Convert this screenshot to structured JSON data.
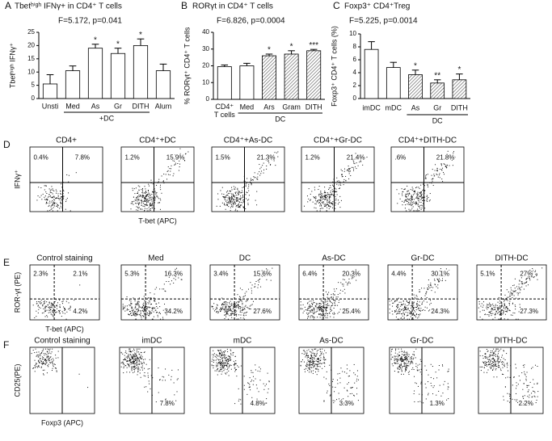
{
  "chart_data": [
    {
      "type": "bar",
      "panel": "A",
      "title": "Tbetʰⁱᵍʰ IFNγ+ in CD4⁺ T cells",
      "subtitle": "F=5.172, p=0.041",
      "ylabel": "Tbetʰⁱᵍʰ IFNγ⁺",
      "categories": [
        "Unsti",
        "Med",
        "As",
        "Gr",
        "DITH",
        "Alum"
      ],
      "values": [
        5.5,
        10.5,
        19,
        17,
        20,
        10.5
      ],
      "errors": [
        3.5,
        1.8,
        1.5,
        2,
        2.5,
        2.5
      ],
      "significance": [
        null,
        null,
        "*",
        "*",
        "*",
        null
      ],
      "hatched": [
        false,
        false,
        false,
        false,
        false,
        false
      ],
      "groups": [
        {
          "label": "+DC",
          "categories": [
            "Med",
            "As",
            "Gr",
            "DITH"
          ]
        }
      ],
      "ylim": [
        0,
        25
      ],
      "yticks": [
        0,
        5,
        10,
        15,
        20,
        25
      ],
      "color": "#ffffff"
    },
    {
      "type": "bar",
      "panel": "B",
      "title": "RORγt in CD4⁺ T cells",
      "subtitle": "F=6.826, p=0.0004",
      "ylabel": "% RORγt⁺ CD4⁺ T cells",
      "categories": [
        "CD4⁺ T cells",
        "Med",
        "Ars",
        "Gram",
        "DITH"
      ],
      "values": [
        19.5,
        20,
        26,
        27,
        29
      ],
      "errors": [
        1,
        1.5,
        1,
        2,
        0.8
      ],
      "significance": [
        null,
        null,
        "*",
        "*",
        "***"
      ],
      "hatched": [
        false,
        false,
        true,
        true,
        true
      ],
      "groups": [
        {
          "label": "DC",
          "categories": [
            "Med",
            "Ars",
            "Gram",
            "DITH"
          ]
        }
      ],
      "ylim": [
        0,
        40
      ],
      "yticks": [
        0,
        10,
        20,
        30,
        40
      ],
      "color": "#ffffff"
    },
    {
      "type": "bar",
      "panel": "C",
      "title": "Foxp3⁺ CD4⁺Treg",
      "subtitle": "F=5.225, p=0.0014",
      "ylabel": "Foxp3⁺ CD4⁺ T cells (%)",
      "categories": [
        "imDC",
        "mDC",
        "As",
        "Gr",
        "DITH"
      ],
      "values": [
        7.6,
        4.8,
        3.7,
        2.4,
        2.9
      ],
      "errors": [
        1.2,
        0.8,
        0.7,
        0.5,
        0.9
      ],
      "significance": [
        null,
        null,
        "*",
        "**",
        "*"
      ],
      "hatched": [
        false,
        false,
        true,
        true,
        true
      ],
      "groups": [
        {
          "label": "DC",
          "categories": [
            "As",
            "Gr",
            "DITH"
          ]
        }
      ],
      "ylim": [
        0,
        10
      ],
      "yticks": [
        0,
        2,
        4,
        6,
        8,
        10
      ],
      "color": "#ffffff"
    }
  ],
  "flow_rows": [
    {
      "panel": "D",
      "ylabel": "IFNγ⁺",
      "xlabel": "T-bet (APC)",
      "lines": "solid-cross",
      "plots": [
        {
          "title": "CD4+",
          "upper_left": "0.4%",
          "upper_right": "7.8%"
        },
        {
          "title": "CD4⁺+DC",
          "upper_left": "1.2%",
          "upper_right": "15.9%"
        },
        {
          "title": "CD4⁺+As-DC",
          "upper_left": "1.5%",
          "upper_right": "21.3%"
        },
        {
          "title": "CD4⁺+Gr-DC",
          "upper_left": "1.2%",
          "upper_right": "21.4%"
        },
        {
          "title": "CD4⁺+DITH-DC",
          "upper_left": ".6%",
          "upper_right": "21.8%"
        }
      ]
    },
    {
      "panel": "E",
      "ylabel": "ROR-γt (PE)",
      "xlabel": "T-bet (APC)",
      "lines": "dashed-cross",
      "plots": [
        {
          "title": "Control staining",
          "upper_left": "2.3%",
          "upper_right": "2.1%",
          "lower_right": "4.2%"
        },
        {
          "title": "Med",
          "upper_left": "5.3%",
          "upper_right": "16.3%",
          "lower_right": "34.2%"
        },
        {
          "title": "DC",
          "upper_left": "3.4%",
          "upper_right": "15.6%",
          "lower_right": "27.6%"
        },
        {
          "title": "As-DC",
          "upper_left": "6.4%",
          "upper_right": "20.3%",
          "lower_right": "25.4%"
        },
        {
          "title": "Gr-DC",
          "upper_left": "4.4%",
          "upper_right": "30.1%",
          "lower_right": "24.3%"
        },
        {
          "title": "DITH-DC",
          "upper_left": "5.1%",
          "upper_right": "27%",
          "lower_right": "27.3%"
        }
      ]
    },
    {
      "panel": "F",
      "ylabel": "CD25(PE)",
      "xlabel": "Foxp3 (APC)",
      "lines": "solid-vertical",
      "plots": [
        {
          "title": "Control staining"
        },
        {
          "title": "imDC",
          "lower_right": "7.8%"
        },
        {
          "title": "mDC",
          "lower_right": "4.8%"
        },
        {
          "title": "As-DC",
          "lower_right": "3.3%"
        },
        {
          "title": "Gr-DC",
          "lower_right": "1.3%"
        },
        {
          "title": "DITH-DC",
          "lower_right": "2.2%"
        }
      ]
    }
  ]
}
